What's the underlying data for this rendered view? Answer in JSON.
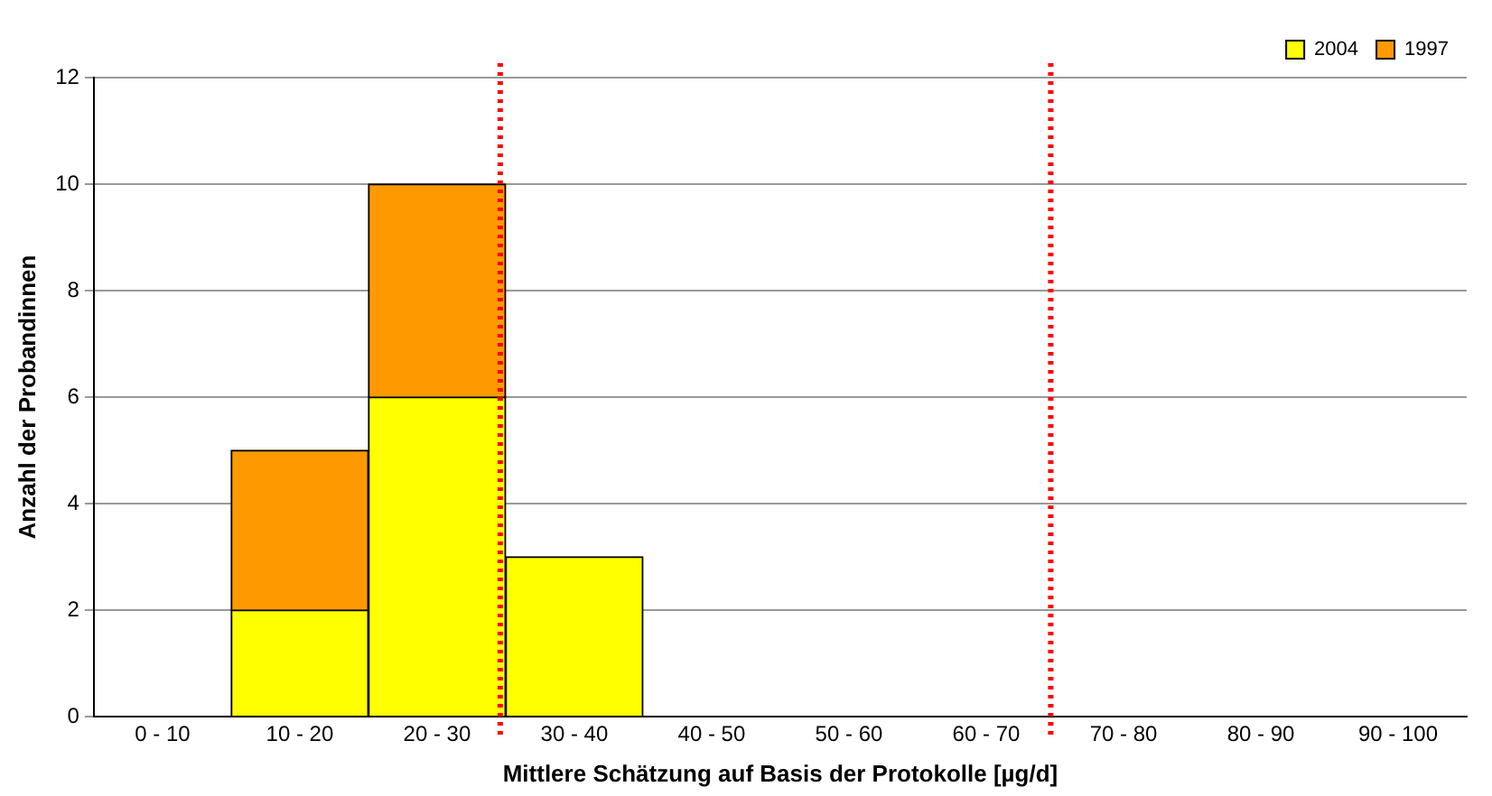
{
  "chart_data": {
    "type": "bar",
    "xlabel": "Mittlere Schätzung auf Basis der Protokolle [µg/d]",
    "ylabel": "Anzahl der Probandinnen",
    "categories": [
      "0 - 10",
      "10 - 20",
      "20 - 30",
      "30 - 40",
      "40 - 50",
      "50 - 60",
      "60 - 70",
      "70 - 80",
      "80 - 90",
      "90 - 100"
    ],
    "series": [
      {
        "name": "2004",
        "color": "#ffff00",
        "values": [
          0,
          2,
          6,
          3,
          0,
          0,
          0,
          0,
          0,
          0
        ]
      },
      {
        "name": "1997",
        "color": "#ff9900",
        "values": [
          0,
          3,
          4,
          0,
          0,
          0,
          0,
          0,
          0,
          0
        ]
      }
    ],
    "stacked": true,
    "ylim": [
      0,
      12
    ],
    "yticks": [
      0,
      2,
      4,
      6,
      8,
      10,
      12
    ],
    "grid": "y",
    "legend": "top right"
  }
}
